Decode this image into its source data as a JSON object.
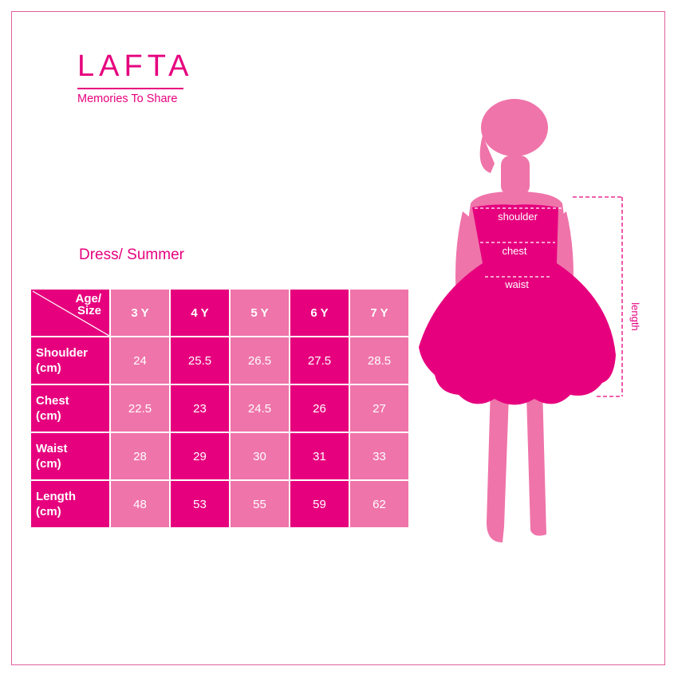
{
  "brand": {
    "name": "LAFTA",
    "tagline": "Memories To Share"
  },
  "title": "Dress/ Summer",
  "table": {
    "corner": [
      "Age/",
      "Size"
    ],
    "columns": [
      "3 Y",
      "4 Y",
      "5 Y",
      "6 Y",
      "7 Y"
    ],
    "rows": [
      {
        "label": [
          "Shoulder",
          "(cm)"
        ],
        "values": [
          "24",
          "25.5",
          "26.5",
          "27.5",
          "28.5"
        ]
      },
      {
        "label": [
          "Chest",
          "(cm)"
        ],
        "values": [
          "22.5",
          "23",
          "24.5",
          "26",
          "27"
        ]
      },
      {
        "label": [
          "Waist",
          "(cm)"
        ],
        "values": [
          "28",
          "29",
          "30",
          "31",
          "33"
        ]
      },
      {
        "label": [
          "Length",
          "(cm)"
        ],
        "values": [
          "48",
          "53",
          "55",
          "59",
          "62"
        ]
      }
    ]
  },
  "figure": {
    "shoulder": "shoulder",
    "chest": "chest",
    "waist": "waist",
    "length": "length"
  },
  "colors": {
    "dark": "#e6007e",
    "light": "#ef74aa",
    "border": "#e0609e"
  }
}
